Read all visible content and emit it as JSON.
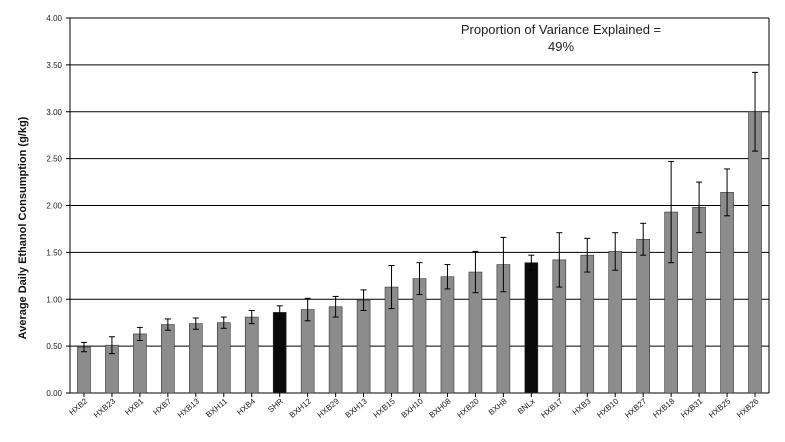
{
  "chart_data": {
    "type": "bar",
    "title": "",
    "xlabel": "",
    "ylabel": "Average Daily Ethanol Consumption (g/kg)",
    "ylim": [
      0,
      4
    ],
    "yticks": [
      "0.00",
      "0.50",
      "1.00",
      "1.50",
      "2.00",
      "2.50",
      "3.00",
      "3.50",
      "4.00"
    ],
    "grid": true,
    "annotation": [
      "Proportion of Variance Explained =",
      "49%"
    ],
    "categories": [
      "HXB2",
      "HXB23",
      "HXB1",
      "HXB7",
      "HXB13",
      "BXH11",
      "HXB4",
      "SHR",
      "BXH12",
      "HXB29",
      "BXH13",
      "HXB15",
      "BXH10",
      "BXH08",
      "HXB20",
      "BXH8",
      "BNLx",
      "HXB17",
      "HXB3",
      "HXB10",
      "HXB27",
      "HXB18",
      "HXB31",
      "HXB25",
      "HXB26"
    ],
    "values": [
      0.49,
      0.51,
      0.63,
      0.73,
      0.74,
      0.75,
      0.81,
      0.86,
      0.89,
      0.92,
      0.99,
      1.13,
      1.22,
      1.24,
      1.29,
      1.37,
      1.39,
      1.42,
      1.47,
      1.51,
      1.64,
      1.93,
      1.98,
      2.14,
      3.0
    ],
    "errors": [
      0.05,
      0.09,
      0.07,
      0.06,
      0.06,
      0.06,
      0.07,
      0.07,
      0.12,
      0.11,
      0.11,
      0.23,
      0.17,
      0.13,
      0.22,
      0.29,
      0.08,
      0.29,
      0.18,
      0.2,
      0.17,
      0.54,
      0.27,
      0.25,
      0.42
    ],
    "highlight": [
      "SHR",
      "BNLx"
    ],
    "colors": {
      "bar": "#8c8c8c",
      "highlight": "#0a0a0a",
      "grid": "#000000",
      "error": "#000000"
    }
  }
}
